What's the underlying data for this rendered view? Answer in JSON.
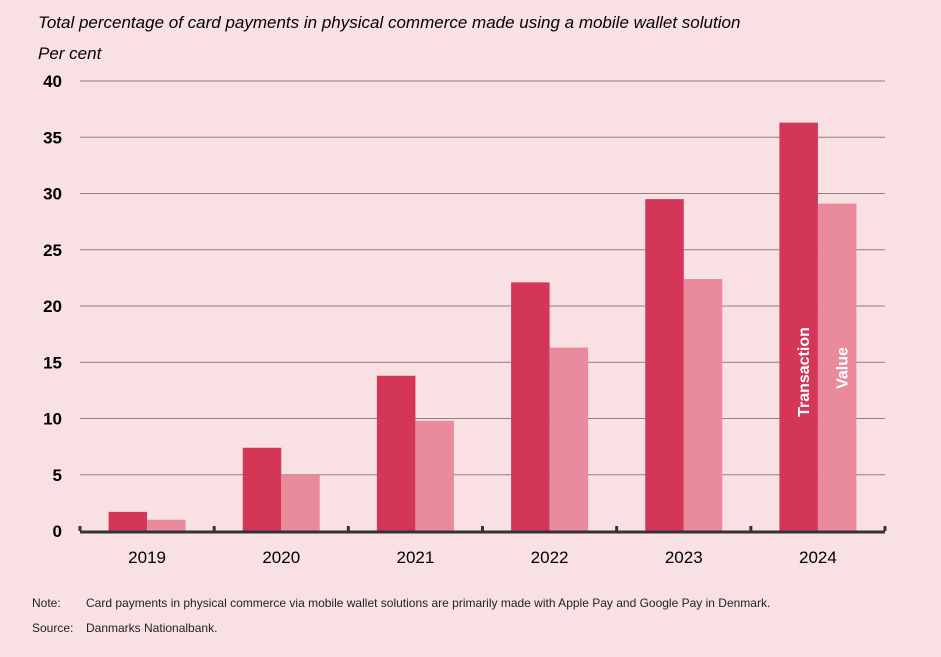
{
  "chart_data": {
    "type": "bar",
    "title": "Total percentage of card payments in physical commerce made using a mobile wallet solution",
    "ylabel": "Per cent",
    "xlabel": "",
    "categories": [
      "2019",
      "2020",
      "2021",
      "2022",
      "2023",
      "2024"
    ],
    "series": [
      {
        "name": "Transaction",
        "color": "#d33657",
        "values": [
          1.7,
          7.4,
          13.8,
          22.1,
          29.5,
          36.3
        ]
      },
      {
        "name": "Value",
        "color": "#e98b9c",
        "values": [
          1.0,
          5.0,
          9.8,
          16.3,
          22.4,
          29.1
        ]
      }
    ],
    "ylim": [
      0,
      40
    ],
    "yticks": [
      0,
      5,
      10,
      15,
      20,
      25,
      30,
      35,
      40
    ],
    "grid": true,
    "legend": "inside bars of last category"
  },
  "footer": {
    "note_label": "Note:",
    "note_text": "Card payments in physical commerce via mobile wallet solutions are primarily made with Apple Pay and Google Pay in Denmark.",
    "source_label": "Source:",
    "source_text": "Danmarks Nationalbank."
  }
}
